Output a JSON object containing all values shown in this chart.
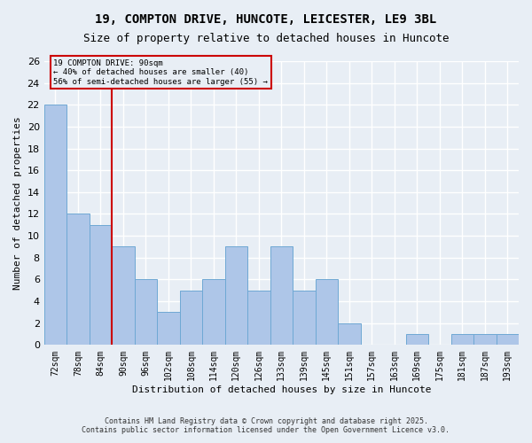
{
  "title1": "19, COMPTON DRIVE, HUNCOTE, LEICESTER, LE9 3BL",
  "title2": "Size of property relative to detached houses in Huncote",
  "xlabel": "Distribution of detached houses by size in Huncote",
  "ylabel": "Number of detached properties",
  "categories": [
    "72sqm",
    "78sqm",
    "84sqm",
    "90sqm",
    "96sqm",
    "102sqm",
    "108sqm",
    "114sqm",
    "120sqm",
    "126sqm",
    "133sqm",
    "139sqm",
    "145sqm",
    "151sqm",
    "157sqm",
    "163sqm",
    "169sqm",
    "175sqm",
    "181sqm",
    "187sqm",
    "193sqm"
  ],
  "values": [
    22,
    12,
    11,
    9,
    6,
    3,
    5,
    6,
    9,
    5,
    9,
    5,
    6,
    2,
    0,
    0,
    1,
    0,
    1,
    1,
    1
  ],
  "bar_color": "#aec6e8",
  "bar_edgecolor": "#6fa8d4",
  "vline_x": 3,
  "vline_color": "#cc0000",
  "annotation_text": "19 COMPTON DRIVE: 90sqm\n← 40% of detached houses are smaller (40)\n56% of semi-detached houses are larger (55) →",
  "annotation_box_color": "#cc0000",
  "ylim": [
    0,
    26
  ],
  "yticks": [
    0,
    2,
    4,
    6,
    8,
    10,
    12,
    14,
    16,
    18,
    20,
    22,
    24,
    26
  ],
  "bg_color": "#e8eef5",
  "grid_color": "#ffffff",
  "footer1": "Contains HM Land Registry data © Crown copyright and database right 2025.",
  "footer2": "Contains public sector information licensed under the Open Government Licence v3.0."
}
